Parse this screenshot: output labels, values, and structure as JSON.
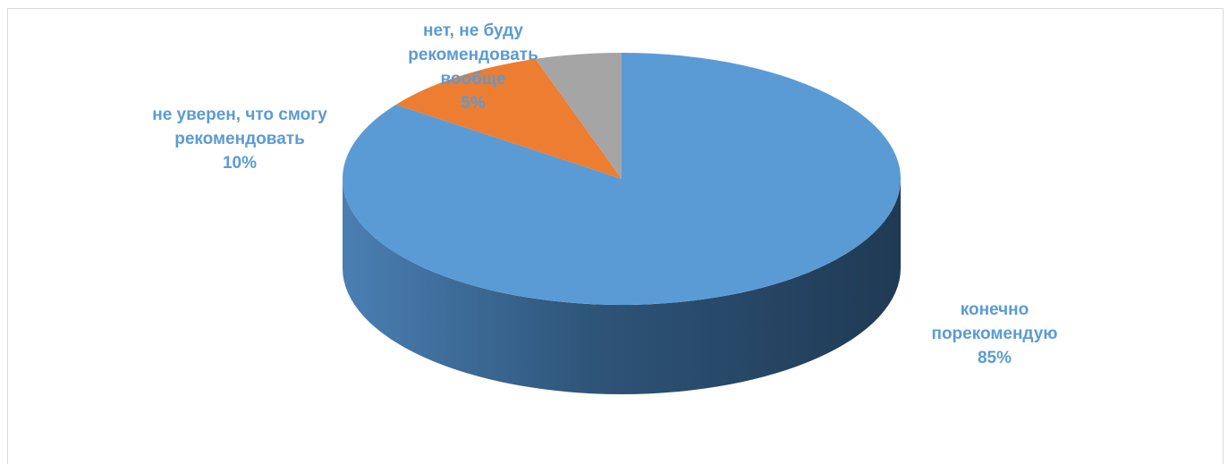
{
  "chart_data": {
    "type": "pie",
    "title": "",
    "slices": [
      {
        "label_lines": [
          "конечно",
          "порекомендую"
        ],
        "percent_label": "85%",
        "value": 85,
        "color": "#5b9bd5"
      },
      {
        "label_lines": [
          "не уверен, что смогу",
          "рекомендовать"
        ],
        "percent_label": "10%",
        "value": 10,
        "color": "#ed7d31"
      },
      {
        "label_lines": [
          "нет, не буду",
          "рекомендовать",
          "вообще"
        ],
        "percent_label": "5%",
        "value": 5,
        "color": "#a5a5a5"
      }
    ],
    "label_color": "#5b9bd5",
    "style": "3d-pie"
  }
}
